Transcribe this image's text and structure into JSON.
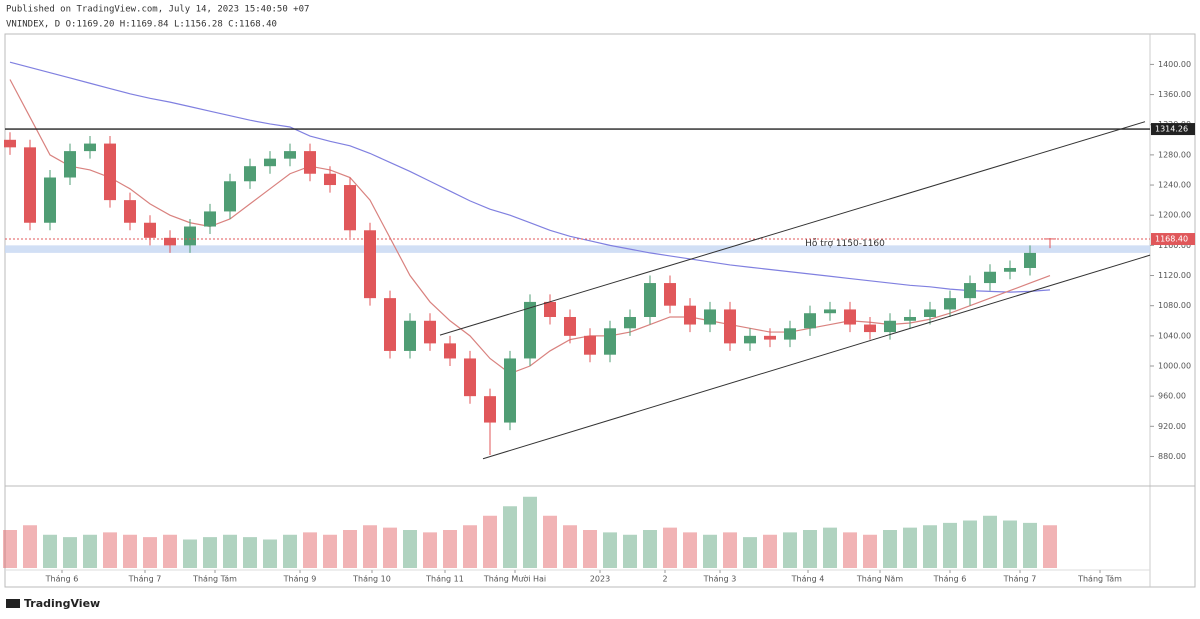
{
  "chart_data": {
    "type": "candlestick",
    "published": "Published on TradingView.com, July 14, 2023 15:40:50 +07",
    "title": "VNINDEX, D O:1169.20 H:1169.84 L:1156.28 C:1168.40",
    "brand": "TradingView",
    "up_color": "#4f9d74",
    "down_color": "#e0575a",
    "xlim": [
      -0.1,
      57
    ],
    "xticks": [
      {
        "value": 2.6,
        "label": "Tháng 6"
      },
      {
        "value": 6.75,
        "label": "Tháng 7"
      },
      {
        "value": 10.25,
        "label": "Tháng Tám"
      },
      {
        "value": 14.5,
        "label": "Tháng 9"
      },
      {
        "value": 18.1,
        "label": "Tháng 10"
      },
      {
        "value": 21.75,
        "label": "Tháng 11"
      },
      {
        "value": 25.25,
        "label": "Tháng Mười Hai"
      },
      {
        "value": 29.5,
        "label": "2023"
      },
      {
        "value": 32.75,
        "label": "2"
      },
      {
        "value": 35.5,
        "label": "Tháng 3"
      },
      {
        "value": 39.9,
        "label": "Tháng 4"
      },
      {
        "value": 43.5,
        "label": "Tháng Năm"
      },
      {
        "value": 47,
        "label": "Tháng 6"
      },
      {
        "value": 50.5,
        "label": "Tháng 7"
      },
      {
        "value": 54.5,
        "label": "Tháng Tám"
      }
    ],
    "ylim": [
      843.5,
      1439
    ],
    "yticks": [
      {
        "value": 1400,
        "label": "1400.00"
      },
      {
        "value": 1360,
        "label": "1360.00"
      },
      {
        "value": 1320,
        "label": "1320.00"
      },
      {
        "value": 1280,
        "label": "1280.00"
      },
      {
        "value": 1240,
        "label": "1240.00"
      },
      {
        "value": 1200,
        "label": "1200.00"
      },
      {
        "value": 1160,
        "label": "1160.00"
      },
      {
        "value": 1120,
        "label": "1120.00"
      },
      {
        "value": 1080,
        "label": "1080.00"
      },
      {
        "value": 1040,
        "label": "1040.00"
      },
      {
        "value": 1000,
        "label": "1000.00"
      },
      {
        "value": 960,
        "label": "960.00"
      },
      {
        "value": 920,
        "label": "920.00"
      },
      {
        "value": 880,
        "label": "880.00"
      }
    ],
    "open": [
      1300,
      1290,
      1190,
      1250,
      1285,
      1295,
      1220,
      1190,
      1170,
      1160,
      1185,
      1205,
      1245,
      1265,
      1275,
      1285,
      1255,
      1240,
      1180,
      1090,
      1020,
      1060,
      1030,
      1010,
      960,
      925,
      1010,
      1085,
      1065,
      1040,
      1015,
      1050,
      1065,
      1110,
      1080,
      1055,
      1075,
      1030,
      1040,
      1035,
      1050,
      1070,
      1075,
      1055,
      1045,
      1060,
      1065,
      1075,
      1090,
      1110,
      1125,
      1130,
      1169.2
    ],
    "high": [
      1310,
      1300,
      1260,
      1295,
      1305,
      1305,
      1230,
      1200,
      1180,
      1195,
      1215,
      1255,
      1275,
      1285,
      1295,
      1295,
      1265,
      1250,
      1190,
      1100,
      1070,
      1070,
      1040,
      1020,
      970,
      1020,
      1095,
      1095,
      1075,
      1050,
      1060,
      1075,
      1120,
      1120,
      1090,
      1085,
      1085,
      1050,
      1050,
      1060,
      1080,
      1085,
      1085,
      1065,
      1070,
      1075,
      1085,
      1100,
      1120,
      1135,
      1140,
      1160,
      1169.84
    ],
    "low": [
      1280,
      1180,
      1180,
      1240,
      1275,
      1210,
      1180,
      1160,
      1150,
      1150,
      1175,
      1195,
      1235,
      1255,
      1265,
      1245,
      1230,
      1170,
      1080,
      1010,
      1010,
      1020,
      1000,
      950,
      882,
      915,
      1000,
      1055,
      1030,
      1005,
      1005,
      1040,
      1055,
      1070,
      1045,
      1045,
      1020,
      1020,
      1025,
      1025,
      1040,
      1060,
      1045,
      1035,
      1035,
      1050,
      1055,
      1065,
      1080,
      1100,
      1115,
      1120,
      1156.28
    ],
    "close": [
      1290,
      1190,
      1250,
      1285,
      1295,
      1220,
      1190,
      1170,
      1160,
      1185,
      1205,
      1245,
      1265,
      1275,
      1285,
      1255,
      1240,
      1180,
      1090,
      1020,
      1060,
      1030,
      1010,
      960,
      925,
      1010,
      1085,
      1065,
      1040,
      1015,
      1050,
      1065,
      1110,
      1080,
      1055,
      1075,
      1030,
      1040,
      1035,
      1050,
      1070,
      1075,
      1055,
      1045,
      1060,
      1065,
      1075,
      1090,
      1110,
      1125,
      1130,
      1150,
      1168.4
    ],
    "volume": [
      800,
      900,
      700,
      650,
      700,
      750,
      700,
      650,
      700,
      600,
      650,
      700,
      650,
      600,
      700,
      750,
      700,
      800,
      900,
      850,
      800,
      750,
      800,
      900,
      1100,
      1300,
      1500,
      1100,
      900,
      800,
      750,
      700,
      800,
      850,
      750,
      700,
      750,
      650,
      700,
      750,
      800,
      850,
      750,
      700,
      800,
      850,
      900,
      950,
      1000,
      1100,
      1000,
      950,
      900
    ],
    "volume_ylim": [
      0,
      1600
    ],
    "series": [
      {
        "color": "#8080e0",
        "values": [
          1403,
          1396,
          1389,
          1382,
          1375,
          1368,
          1361,
          1355,
          1350,
          1344,
          1338,
          1332,
          1326,
          1321,
          1317,
          1305,
          1298,
          1292,
          1282,
          1270,
          1258,
          1245,
          1232,
          1219,
          1208,
          1200,
          1190,
          1180,
          1172,
          1166,
          1160,
          1155,
          1150,
          1146,
          1142,
          1138,
          1134,
          1131,
          1128,
          1125,
          1122,
          1119,
          1116,
          1113,
          1110,
          1107,
          1105,
          1102,
          1100,
          1099,
          1098,
          1099,
          1101
        ]
      },
      {
        "color": "#d9827f",
        "values": [
          1380,
          1330,
          1280,
          1265,
          1260,
          1250,
          1235,
          1215,
          1200,
          1190,
          1185,
          1195,
          1215,
          1235,
          1255,
          1265,
          1260,
          1250,
          1220,
          1170,
          1120,
          1085,
          1060,
          1040,
          1010,
          990,
          1000,
          1020,
          1035,
          1040,
          1040,
          1045,
          1055,
          1065,
          1065,
          1060,
          1055,
          1050,
          1045,
          1045,
          1050,
          1055,
          1060,
          1058,
          1055,
          1057,
          1062,
          1070,
          1080,
          1090,
          1100,
          1110,
          1120
        ]
      }
    ],
    "hline": 1314.26,
    "last_price": {
      "value": 1168.4,
      "label": "1168.40"
    },
    "zone": {
      "low": 1150,
      "high": 1160,
      "label": "Hỗ trợ 1150-1160"
    },
    "trendlines": [
      {
        "x": [
          21.5,
          56.75
        ],
        "values": [
          1041,
          1324
        ]
      },
      {
        "x": [
          23.65,
          57
        ],
        "values": [
          877,
          1147
        ]
      }
    ]
  }
}
